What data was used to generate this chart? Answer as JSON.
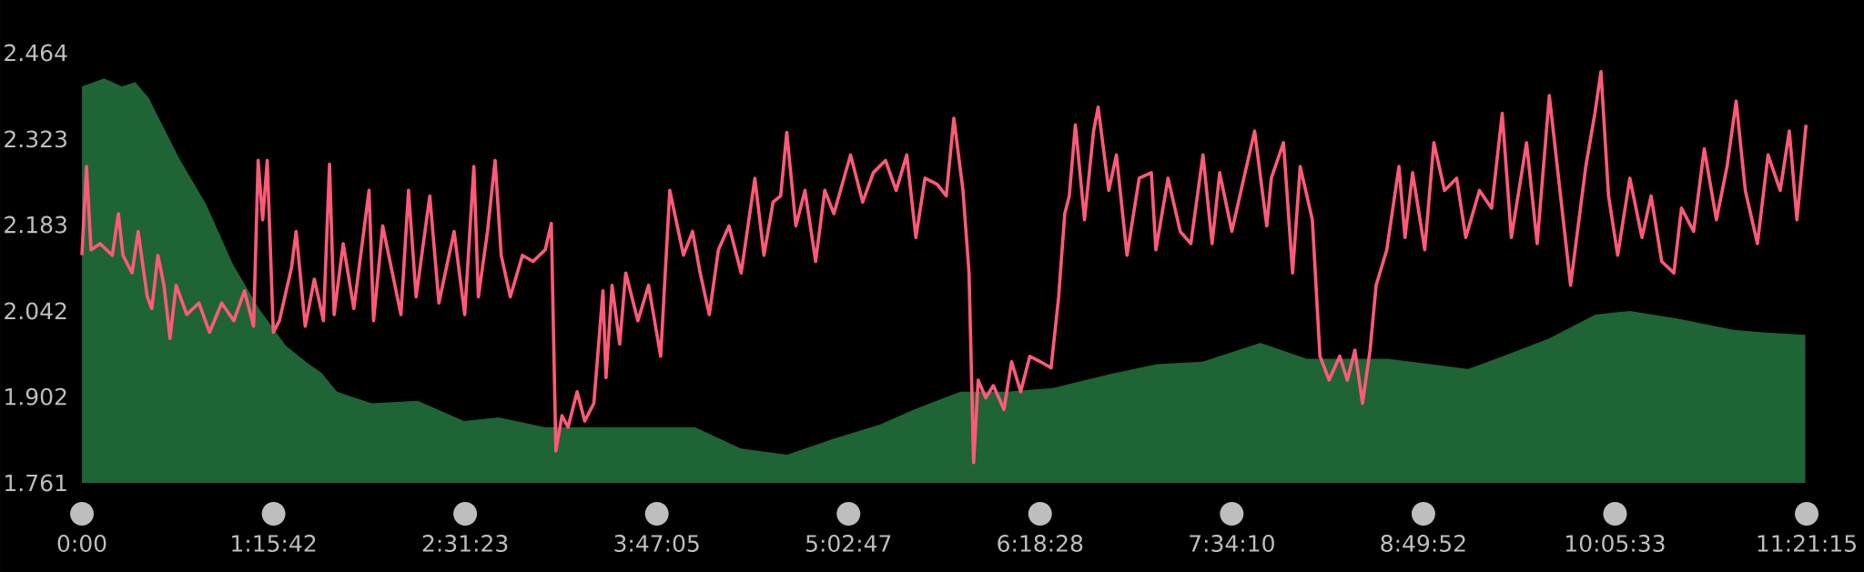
{
  "chart_data": {
    "type": "line",
    "xlim": [
      0,
      11.35417
    ],
    "ylim": [
      1.761,
      2.464
    ],
    "xticks": [
      {
        "value": 0,
        "label": "0:00"
      },
      {
        "value": 1.26167,
        "label": "1:15:42"
      },
      {
        "value": 2.52306,
        "label": "2:31:23"
      },
      {
        "value": 3.78472,
        "label": "3:47:05"
      },
      {
        "value": 5.04639,
        "label": "5:02:47"
      },
      {
        "value": 6.30778,
        "label": "6:18:28"
      },
      {
        "value": 7.56944,
        "label": "7:34:10"
      },
      {
        "value": 8.83111,
        "label": "8:49:52"
      },
      {
        "value": 10.0925,
        "label": "10:05:33"
      },
      {
        "value": 11.35417,
        "label": "11:21:15"
      }
    ],
    "yticks": [
      1.761,
      1.902,
      2.042,
      2.183,
      2.323,
      2.464
    ],
    "grid": false,
    "legend": false,
    "series": [
      {
        "type": "area",
        "color": "#1e6434",
        "x": [
          0,
          0.146,
          0.263,
          0.35,
          0.438,
          0.643,
          0.818,
          0.993,
          1.168,
          1.343,
          1.489,
          1.577,
          1.679,
          1.907,
          2.211,
          2.515,
          2.743,
          3.047,
          3.427,
          4.035,
          4.339,
          4.643,
          4.947,
          5.251,
          5.479,
          5.783,
          6.087,
          6.391,
          6.771,
          7.074,
          7.378,
          7.758,
          8.062,
          8.594,
          9.126,
          9.354,
          9.658,
          9.962,
          10.19,
          10.494,
          10.874,
          11.064,
          11.345
        ],
        "values": [
          2.409,
          2.422,
          2.409,
          2.416,
          2.391,
          2.29,
          2.216,
          2.119,
          2.045,
          1.985,
          1.956,
          1.941,
          1.91,
          1.891,
          1.895,
          1.862,
          1.868,
          1.852,
          1.852,
          1.852,
          1.817,
          1.807,
          1.833,
          1.856,
          1.881,
          1.91,
          1.91,
          1.916,
          1.939,
          1.955,
          1.959,
          1.99,
          1.964,
          1.964,
          1.947,
          1.968,
          1.997,
          2.036,
          2.042,
          2.03,
          2.011,
          2.007,
          2.003
        ]
      },
      {
        "type": "line",
        "color": "#ff5a78",
        "x": [
          0,
          0.03,
          0.06,
          0.12,
          0.2,
          0.24,
          0.27,
          0.33,
          0.37,
          0.43,
          0.46,
          0.5,
          0.54,
          0.58,
          0.62,
          0.69,
          0.77,
          0.84,
          0.92,
          1.0,
          1.07,
          1.13,
          1.16,
          1.19,
          1.22,
          1.26,
          1.3,
          1.38,
          1.41,
          1.47,
          1.53,
          1.59,
          1.63,
          1.66,
          1.72,
          1.79,
          1.89,
          1.92,
          1.98,
          2.1,
          2.15,
          2.2,
          2.29,
          2.35,
          2.45,
          2.52,
          2.58,
          2.61,
          2.67,
          2.72,
          2.76,
          2.82,
          2.9,
          2.97,
          3.05,
          3.09,
          3.12,
          3.16,
          3.2,
          3.26,
          3.31,
          3.37,
          3.43,
          3.45,
          3.49,
          3.54,
          3.58,
          3.66,
          3.73,
          3.81,
          3.87,
          3.96,
          4.02,
          4.07,
          4.13,
          4.19,
          4.26,
          4.34,
          4.43,
          4.49,
          4.55,
          4.6,
          4.64,
          4.7,
          4.76,
          4.83,
          4.89,
          4.95,
          5.06,
          5.14,
          5.21,
          5.29,
          5.36,
          5.43,
          5.49,
          5.55,
          5.63,
          5.69,
          5.74,
          5.8,
          5.84,
          5.87,
          5.9,
          5.95,
          6.0,
          6.07,
          6.12,
          6.18,
          6.24,
          6.31,
          6.38,
          6.43,
          6.47,
          6.5,
          6.54,
          6.6,
          6.66,
          6.69,
          6.76,
          6.81,
          6.88,
          6.96,
          7.04,
          7.07,
          7.15,
          7.23,
          7.3,
          7.38,
          7.44,
          7.49,
          7.57,
          7.64,
          7.72,
          7.8,
          7.83,
          7.91,
          7.97,
          8.02,
          8.1,
          8.15,
          8.21,
          8.28,
          8.33,
          8.38,
          8.43,
          8.48,
          8.52,
          8.59,
          8.67,
          8.71,
          8.76,
          8.84,
          8.9,
          8.97,
          9.05,
          9.11,
          9.2,
          9.28,
          9.35,
          9.41,
          9.51,
          9.58,
          9.66,
          9.73,
          9.8,
          9.9,
          9.96,
          10.0,
          10.05,
          10.11,
          10.19,
          10.27,
          10.33,
          10.4,
          10.48,
          10.53,
          10.61,
          10.68,
          10.76,
          10.83,
          10.89,
          10.95,
          11.03,
          11.1,
          11.18,
          11.24,
          11.29,
          11.35
        ],
        "values": [
          2.133,
          2.278,
          2.142,
          2.152,
          2.133,
          2.201,
          2.133,
          2.104,
          2.172,
          2.065,
          2.046,
          2.133,
          2.084,
          1.997,
          2.084,
          2.036,
          2.055,
          2.007,
          2.055,
          2.026,
          2.075,
          2.017,
          2.288,
          2.191,
          2.288,
          2.007,
          2.026,
          2.113,
          2.172,
          2.017,
          2.094,
          2.026,
          2.282,
          2.036,
          2.152,
          2.046,
          2.239,
          2.026,
          2.181,
          2.036,
          2.239,
          2.065,
          2.23,
          2.055,
          2.172,
          2.036,
          2.278,
          2.065,
          2.172,
          2.288,
          2.133,
          2.065,
          2.133,
          2.123,
          2.142,
          2.185,
          1.813,
          1.871,
          1.852,
          1.91,
          1.862,
          1.891,
          2.075,
          1.933,
          2.084,
          1.988,
          2.104,
          2.026,
          2.084,
          1.968,
          2.239,
          2.133,
          2.172,
          2.104,
          2.036,
          2.142,
          2.181,
          2.104,
          2.259,
          2.133,
          2.22,
          2.23,
          2.334,
          2.181,
          2.239,
          2.123,
          2.239,
          2.201,
          2.297,
          2.22,
          2.268,
          2.288,
          2.239,
          2.297,
          2.162,
          2.259,
          2.249,
          2.23,
          2.357,
          2.239,
          2.104,
          1.794,
          1.929,
          1.9,
          1.92,
          1.881,
          1.959,
          1.91,
          1.968,
          1.959,
          1.949,
          2.065,
          2.201,
          2.23,
          2.346,
          2.191,
          2.336,
          2.375,
          2.239,
          2.297,
          2.133,
          2.259,
          2.268,
          2.142,
          2.259,
          2.172,
          2.152,
          2.297,
          2.152,
          2.268,
          2.172,
          2.249,
          2.336,
          2.181,
          2.259,
          2.317,
          2.104,
          2.278,
          2.191,
          1.968,
          1.929,
          1.968,
          1.929,
          1.978,
          1.891,
          1.978,
          2.084,
          2.142,
          2.278,
          2.162,
          2.268,
          2.142,
          2.317,
          2.239,
          2.259,
          2.162,
          2.239,
          2.21,
          2.365,
          2.162,
          2.317,
          2.152,
          2.394,
          2.239,
          2.084,
          2.278,
          2.365,
          2.433,
          2.23,
          2.133,
          2.259,
          2.162,
          2.23,
          2.123,
          2.104,
          2.21,
          2.172,
          2.307,
          2.191,
          2.278,
          2.385,
          2.239,
          2.152,
          2.297,
          2.239,
          2.336,
          2.191,
          2.346
        ]
      }
    ]
  }
}
